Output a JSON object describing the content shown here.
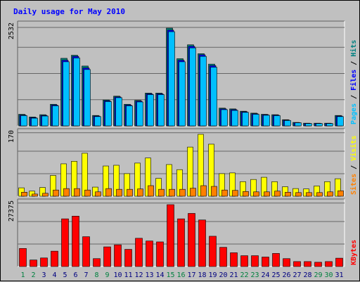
{
  "chart_data": {
    "title": "Daily usage for May 2010",
    "type": "bar",
    "days": [
      "1",
      "2",
      "3",
      "4",
      "5",
      "6",
      "7",
      "8",
      "9",
      "10",
      "11",
      "12",
      "13",
      "14",
      "15",
      "16",
      "17",
      "18",
      "19",
      "20",
      "21",
      "22",
      "23",
      "24",
      "25",
      "26",
      "27",
      "28",
      "29",
      "30",
      "31"
    ],
    "weekend_days": [
      "1",
      "2",
      "8",
      "9",
      "15",
      "16",
      "22",
      "23",
      "29",
      "30"
    ],
    "colors": {
      "weekday_label": "#000080",
      "weekend_label": "#00803f",
      "pages": "#00bfff",
      "files": "#0000ff",
      "hits": "#008080",
      "visits": "#ffff00",
      "sites": "#ff8000",
      "kbytes": "#ff0000",
      "panel_bg": "#c0c0c0",
      "grid": "#666666",
      "title": "#0000ff"
    },
    "panels": [
      {
        "id": "hits-files-pages",
        "max_label": "2532",
        "max": 2532,
        "legend": [
          {
            "text": "Pages",
            "color": "#00bfff"
          },
          {
            "text": " / ",
            "color": "#000000"
          },
          {
            "text": "Files",
            "color": "#0000ff"
          },
          {
            "text": " / ",
            "color": "#000000"
          },
          {
            "text": "Hits",
            "color": "#008080"
          }
        ],
        "series": [
          {
            "name": "Hits",
            "color": "#008080",
            "values": [
              300,
              230,
              290,
              560,
              1750,
              1830,
              1550,
              270,
              670,
              770,
              560,
              660,
              850,
              850,
              2532,
              1740,
              2100,
              1870,
              1600,
              460,
              440,
              380,
              330,
              300,
              290,
              160,
              90,
              70,
              70,
              70,
              270
            ]
          },
          {
            "name": "Files",
            "color": "#0000ff",
            "values": [
              280,
              215,
              270,
              540,
              1700,
              1800,
              1500,
              255,
              650,
              750,
              540,
              640,
              830,
              830,
              2480,
              1700,
              2060,
              1840,
              1560,
              440,
              420,
              365,
              315,
              290,
              280,
              150,
              85,
              65,
              65,
              65,
              255
            ]
          },
          {
            "name": "Pages",
            "color": "#00bfff",
            "values": [
              265,
              200,
              255,
              520,
              1660,
              1760,
              1460,
              240,
              630,
              730,
              520,
              620,
              810,
              810,
              2440,
              1660,
              2020,
              1800,
              1520,
              420,
              400,
              350,
              300,
              275,
              265,
              140,
              80,
              60,
              60,
              60,
              240
            ]
          }
        ]
      },
      {
        "id": "visits-sites",
        "max_label": "170",
        "max": 170,
        "legend": [
          {
            "text": "Sites",
            "color": "#ff8000"
          },
          {
            "text": " / ",
            "color": "#000000"
          },
          {
            "text": "Visits",
            "color": "#ffff00"
          }
        ],
        "series": [
          {
            "name": "Visits",
            "color": "#ffff00",
            "values": [
              23,
              14,
              24,
              57,
              89,
              96,
              118,
              25,
              83,
              85,
              62,
              91,
              105,
              49,
              87,
              73,
              135,
              170,
              143,
              62,
              64,
              40,
              46,
              52,
              40,
              26,
              21,
              20,
              28,
              40,
              48
            ]
          },
          {
            "name": "Sites",
            "color": "#ff8000",
            "values": [
              11,
              6,
              8,
              17,
              21,
              21,
              17,
              12,
              21,
              19,
              19,
              20,
              29,
              19,
              19,
              19,
              22,
              29,
              27,
              17,
              16,
              13,
              12,
              12,
              14,
              11,
              10,
              10,
              10,
              12,
              15
            ]
          }
        ]
      },
      {
        "id": "kbytes",
        "max_label": "27375",
        "max": 27375,
        "legend": [
          {
            "text": "KBytes",
            "color": "#ff0000"
          }
        ],
        "series": [
          {
            "name": "KBytes",
            "color": "#ff0000",
            "values": [
              8000,
              2900,
              3800,
              6800,
              21100,
              22300,
              13200,
              3500,
              8700,
              9600,
              7600,
              12500,
              11300,
              10900,
              27375,
              21100,
              23500,
              20600,
              13400,
              8500,
              6100,
              4800,
              4800,
              4200,
              5800,
              3500,
              2200,
              2200,
              1900,
              2200,
              3700
            ]
          }
        ]
      }
    ]
  }
}
